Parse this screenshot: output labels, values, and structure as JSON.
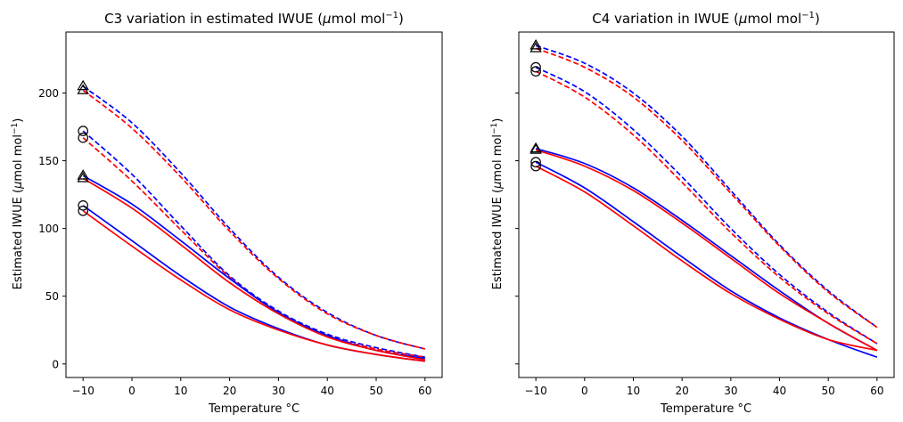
{
  "chart_data": [
    {
      "type": "line",
      "title": "C3 variation in estimated IWUE (μmol mol⁻¹)",
      "xlabel": "Temperature °C",
      "ylabel": "Estimated IWUE (μmol mol⁻¹)",
      "xlim": [
        -13.5,
        63.5
      ],
      "ylim": [
        -10,
        245
      ],
      "xticks": [
        -10,
        0,
        10,
        20,
        30,
        40,
        50,
        60
      ],
      "yticks": [
        0,
        50,
        100,
        150,
        200
      ],
      "grid": false,
      "legend": "none",
      "colors": {
        "a": "#ff0000",
        "b": "#0000ff",
        "marker": "#000000"
      },
      "x": [
        -10,
        0,
        10,
        20,
        30,
        40,
        50,
        60
      ],
      "series": [
        {
          "color": "#0000ff",
          "dash": true,
          "start_marker": "triangle",
          "values": [
            205,
            178,
            141,
            100,
            64,
            38,
            21,
            11
          ]
        },
        {
          "color": "#ff0000",
          "dash": true,
          "start_marker": "triangle",
          "values": [
            202,
            174,
            138,
            98,
            63,
            37,
            21,
            11
          ]
        },
        {
          "color": "#0000ff",
          "dash": true,
          "start_marker": "circle",
          "values": [
            172,
            140,
            102,
            65,
            39,
            22,
            12,
            5
          ]
        },
        {
          "color": "#ff0000",
          "dash": true,
          "start_marker": "circle",
          "values": [
            167,
            135,
            99,
            64,
            38,
            21,
            11,
            5
          ]
        },
        {
          "color": "#0000ff",
          "dash": false,
          "start_marker": "triangle",
          "values": [
            139,
            118,
            91,
            63,
            38,
            21,
            10,
            4
          ]
        },
        {
          "color": "#ff0000",
          "dash": false,
          "start_marker": "triangle",
          "values": [
            137,
            115,
            88,
            60,
            37,
            20,
            10,
            3
          ]
        },
        {
          "color": "#0000ff",
          "dash": false,
          "start_marker": "circle",
          "values": [
            117,
            91,
            65,
            42,
            26,
            14,
            7,
            2
          ]
        },
        {
          "color": "#ff0000",
          "dash": false,
          "start_marker": "circle",
          "values": [
            113,
            87,
            62,
            40,
            25,
            14,
            7,
            2
          ]
        }
      ]
    },
    {
      "type": "line",
      "title": "C4 variation in IWUE (μmol mol⁻¹)",
      "xlabel": "Temperature °C",
      "ylabel": "Estimated IWUE (μmol mol⁻¹)",
      "xlim": [
        -13.5,
        63.5
      ],
      "ylim": [
        -10,
        245
      ],
      "xticks": [
        -10,
        0,
        10,
        20,
        30,
        40,
        50,
        60
      ],
      "yticks": [
        0,
        50,
        100,
        150,
        200
      ],
      "grid": false,
      "legend": "none",
      "colors": {
        "a": "#ff0000",
        "b": "#0000ff",
        "marker": "#000000"
      },
      "x": [
        -10,
        0,
        10,
        20,
        30,
        40,
        50,
        60
      ],
      "series": [
        {
          "color": "#0000ff",
          "dash": true,
          "start_marker": "triangle",
          "values": [
            235,
            222,
            200,
            168,
            128,
            88,
            54,
            27
          ]
        },
        {
          "color": "#ff0000",
          "dash": true,
          "start_marker": "triangle",
          "values": [
            233,
            219,
            197,
            165,
            126,
            87,
            53,
            27
          ]
        },
        {
          "color": "#0000ff",
          "dash": true,
          "start_marker": "circle",
          "values": [
            219,
            201,
            173,
            138,
            100,
            66,
            38,
            15
          ]
        },
        {
          "color": "#ff0000",
          "dash": true,
          "start_marker": "circle",
          "values": [
            216,
            197,
            169,
            134,
            97,
            64,
            37,
            15
          ]
        },
        {
          "color": "#0000ff",
          "dash": false,
          "start_marker": "triangle",
          "values": [
            159,
            148,
            130,
            106,
            80,
            54,
            30,
            10
          ]
        },
        {
          "color": "#ff0000",
          "dash": false,
          "start_marker": "triangle",
          "values": [
            158,
            146,
            128,
            104,
            78,
            52,
            30,
            10
          ]
        },
        {
          "color": "#0000ff",
          "dash": false,
          "start_marker": "circle",
          "values": [
            149,
            130,
            105,
            79,
            54,
            34,
            18,
            5
          ]
        },
        {
          "color": "#ff0000",
          "dash": false,
          "start_marker": "circle",
          "values": [
            146,
            127,
            102,
            76,
            52,
            33,
            18,
            10
          ]
        }
      ]
    }
  ]
}
